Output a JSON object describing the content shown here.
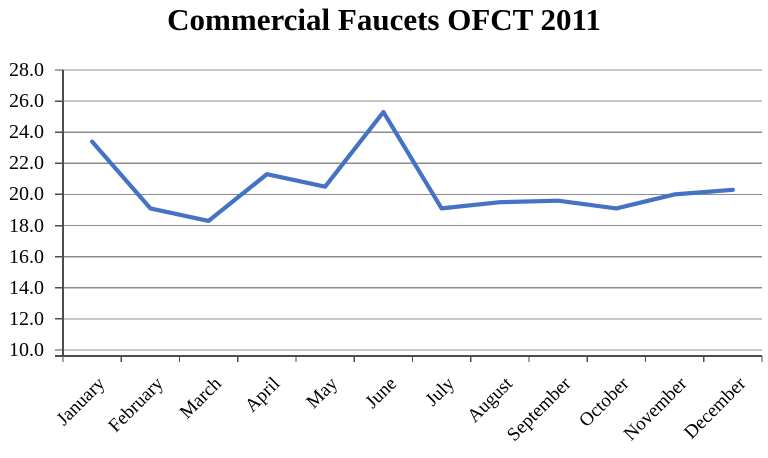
{
  "chart_data": {
    "type": "line",
    "title": "Commercial Faucets OFCT 2011",
    "categories": [
      "January",
      "February",
      "March",
      "April",
      "May",
      "June",
      "July",
      "August",
      "September",
      "October",
      "November",
      "December"
    ],
    "values": [
      23.4,
      19.1,
      18.3,
      21.3,
      20.5,
      25.3,
      19.1,
      19.5,
      19.6,
      19.1,
      20.0,
      20.3
    ],
    "xlabel": "",
    "ylabel": "",
    "ylim": [
      10.0,
      28.0
    ],
    "y_tick_step": 2.0,
    "y_tick_labels": [
      "28.0",
      "26.0",
      "24.0",
      "22.0",
      "20.0",
      "18.0",
      "16.0",
      "14.0",
      "12.0",
      "10.0"
    ],
    "grid": "horizontal",
    "legend": "none",
    "colors": {
      "line": "#4472C4",
      "gridline": "#8C8C8C",
      "axis": "#4D4D4D",
      "text": "#000000",
      "background": "#FFFFFF"
    }
  }
}
